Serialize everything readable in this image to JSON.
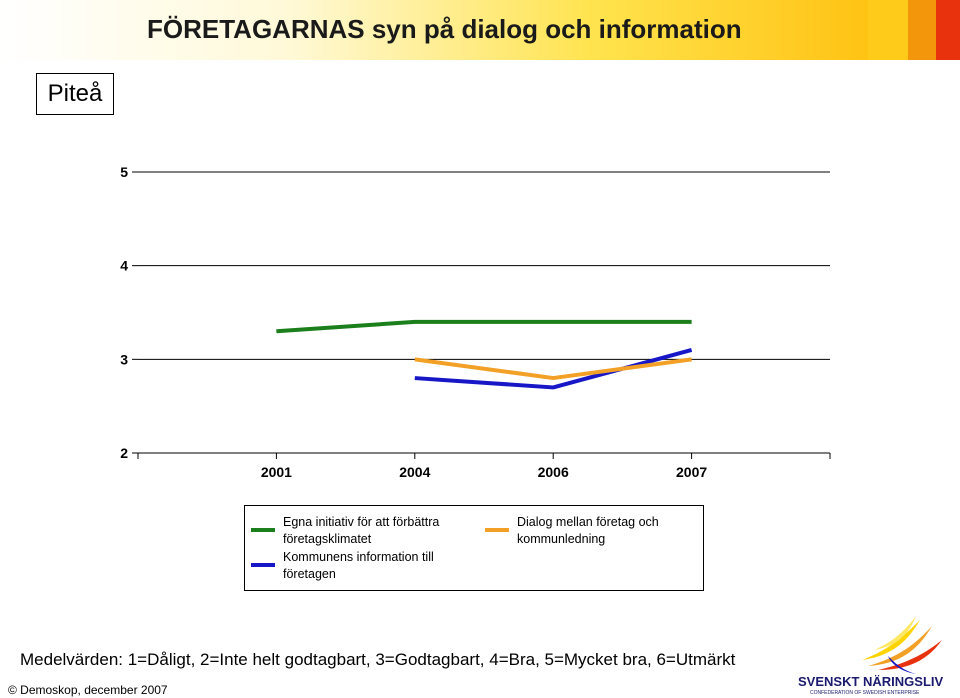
{
  "header": {
    "title": "FÖRETAGARNAS syn på dialog och information",
    "location": "Piteå"
  },
  "colors": {
    "green": "#1b7f1b",
    "blue": "#1717c8",
    "orange": "#f3a027",
    "banner_yellow": "#ffd400",
    "banner_red": "#e8320e"
  },
  "chart_data": {
    "type": "line",
    "categories": [
      "2001",
      "2004",
      "2006",
      "2007"
    ],
    "ylim": [
      2,
      5
    ],
    "yticks": [
      "5",
      "4",
      "3",
      "2"
    ],
    "grid": true,
    "legend_position": "bottom",
    "series": [
      {
        "name": "Egna initiativ för att förbättra företagsklimatet",
        "color": "#1b7f1b",
        "values": [
          3.3,
          3.4,
          3.4,
          3.4
        ]
      },
      {
        "name": "Kommunens information till företagen",
        "color": "#1717c8",
        "values": [
          null,
          2.8,
          2.7,
          3.1
        ]
      },
      {
        "name": "Dialog mellan företag och kommunledning",
        "color": "#f3a027",
        "values": [
          null,
          3.0,
          2.8,
          3.0
        ]
      }
    ]
  },
  "legend": {
    "items": [
      {
        "line1": "Egna initiativ för att förbättra",
        "line2": "företagsklimatet"
      },
      {
        "line1": "Kommunens information till",
        "line2": "företagen"
      },
      {
        "line1": "Dialog mellan företag och",
        "line2": "kommunledning"
      }
    ]
  },
  "footer": {
    "note": "Medelvärden: 1=Dåligt, 2=Inte helt godtagbart, 3=Godtagbart, 4=Bra, 5=Mycket bra, 6=Utmärkt",
    "copyright": "© Demoskop, december 2007",
    "logo_name": "SVENSKT NÄRINGSLIV",
    "logo_sub": "CONFEDERATION OF SWEDISH ENTERPRISE"
  }
}
